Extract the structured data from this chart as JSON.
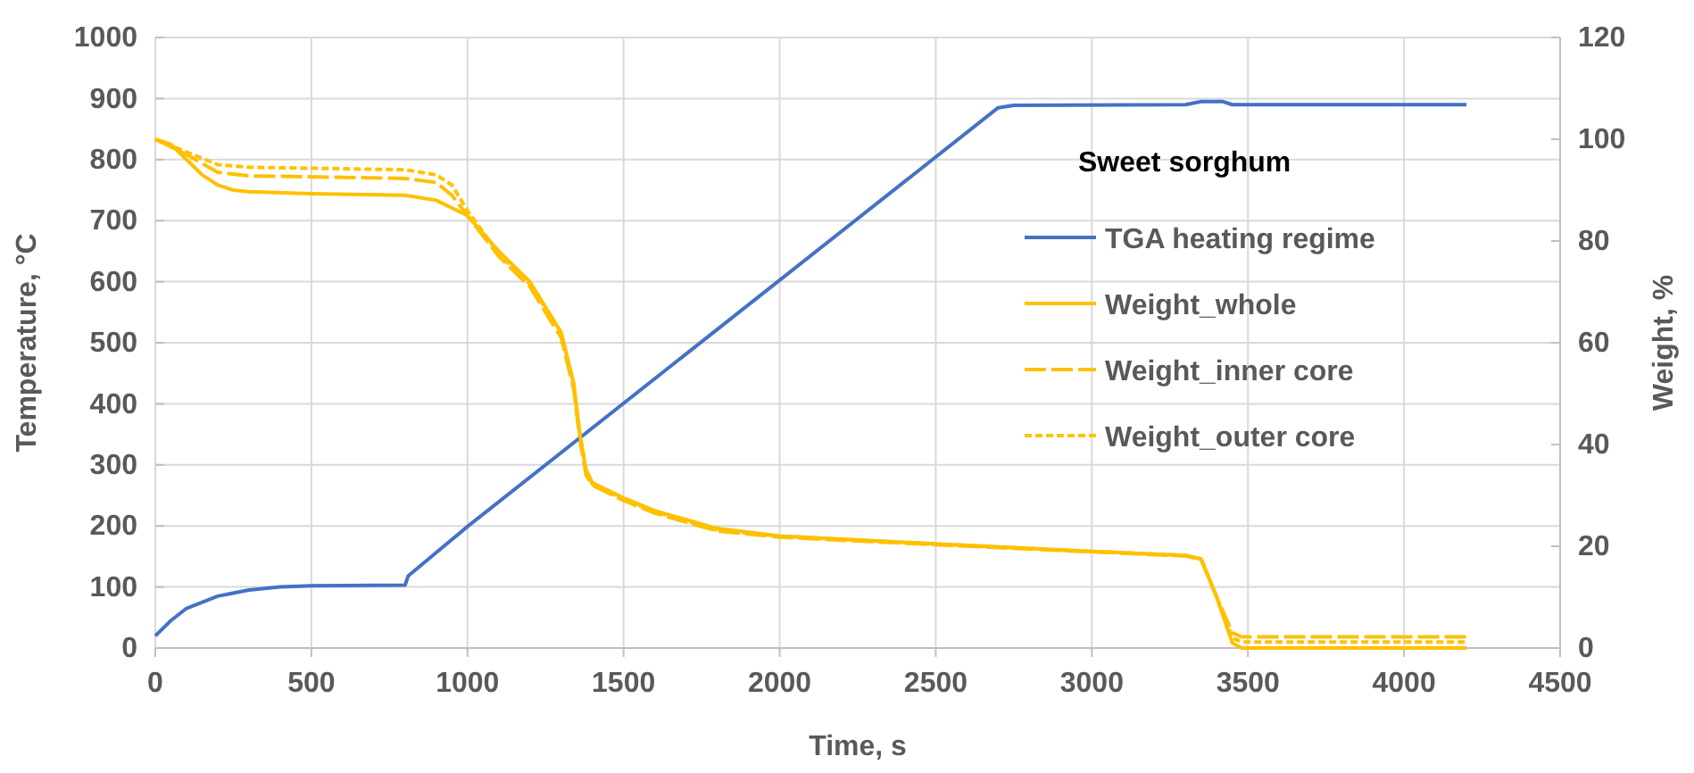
{
  "chart_data": {
    "type": "line",
    "xlabel": "Time, s",
    "ylabel": "Temperature, °C",
    "y2label": "Weight, %",
    "legend_title": "Sweet sorghum",
    "legend": "right",
    "grid": true,
    "marker": "none",
    "xlim": [
      0,
      4500
    ],
    "xticks": [
      0,
      500,
      1000,
      1500,
      2000,
      2500,
      3000,
      3500,
      4000,
      4500
    ],
    "ylim": [
      0,
      1000
    ],
    "yticks": [
      0,
      100,
      200,
      300,
      400,
      500,
      600,
      700,
      800,
      900,
      1000
    ],
    "y2lim": [
      0,
      120
    ],
    "y2ticks": [
      0,
      20,
      40,
      60,
      80,
      100,
      120
    ],
    "series": [
      {
        "name": "TGA heating regime",
        "color": "#4472c4",
        "line_style": "solid",
        "x": [
          0,
          50,
          100,
          200,
          300,
          400,
          500,
          800,
          810,
          1000,
          2700,
          2750,
          3300,
          3350,
          3420,
          3450,
          4200
        ],
        "values": [
          20,
          45,
          65,
          85,
          95,
          100,
          102,
          103,
          118,
          199,
          885,
          889,
          890,
          895,
          895,
          890,
          890
        ]
      },
      {
        "name": "Weight_whole",
        "color": "#ffc000",
        "line_style": "solid",
        "axis": "y2",
        "x": [
          0,
          50,
          100,
          150,
          200,
          250,
          300,
          500,
          800,
          900,
          1000,
          1100,
          1200,
          1300,
          1340,
          1360,
          1380,
          1400,
          1500,
          1600,
          1800,
          2000,
          2500,
          3000,
          3300,
          3350,
          3400,
          3450,
          3480,
          4200
        ],
        "values": [
          100,
          99,
          96,
          93,
          91,
          90,
          89.7,
          89.3,
          89,
          88,
          85,
          78,
          72,
          62,
          52,
          42,
          35,
          32.5,
          29.5,
          27,
          23.5,
          22,
          20.5,
          19,
          18.2,
          17.5,
          10,
          1,
          0,
          0
        ]
      },
      {
        "name": "Weight_inner core",
        "color": "#fdc002",
        "line_style": "dashed",
        "axis": "y2",
        "x": [
          0,
          100,
          200,
          300,
          800,
          900,
          950,
          1000,
          1100,
          1200,
          1300,
          1340,
          1360,
          1380,
          1400,
          1500,
          1600,
          1800,
          2000,
          2500,
          3000,
          3300,
          3350,
          3400,
          3450,
          3480,
          4200
        ],
        "values": [
          100,
          97,
          93.5,
          92.8,
          92.3,
          91.5,
          89,
          85,
          77,
          71,
          61,
          51,
          41,
          34,
          32,
          29,
          26.5,
          23,
          21.8,
          20.3,
          18.9,
          18.1,
          17.4,
          10,
          3,
          2.2,
          2.2
        ]
      },
      {
        "name": "Weight_outer core",
        "color": "#ffc204",
        "line_style": "dotted",
        "axis": "y2",
        "x": [
          0,
          100,
          200,
          300,
          800,
          900,
          950,
          1000,
          1100,
          1200,
          1300,
          1340,
          1360,
          1380,
          1400,
          1500,
          1600,
          1800,
          2000,
          2500,
          3000,
          3300,
          3350,
          3400,
          3450,
          3480,
          4200
        ],
        "values": [
          100,
          97.5,
          95,
          94.5,
          94,
          93,
          91,
          86,
          77.5,
          71.5,
          62,
          52,
          42,
          34.5,
          32.2,
          29.2,
          26.8,
          23.2,
          22,
          20.4,
          19,
          18.2,
          17.5,
          10,
          2,
          1.2,
          1.2
        ]
      }
    ]
  }
}
